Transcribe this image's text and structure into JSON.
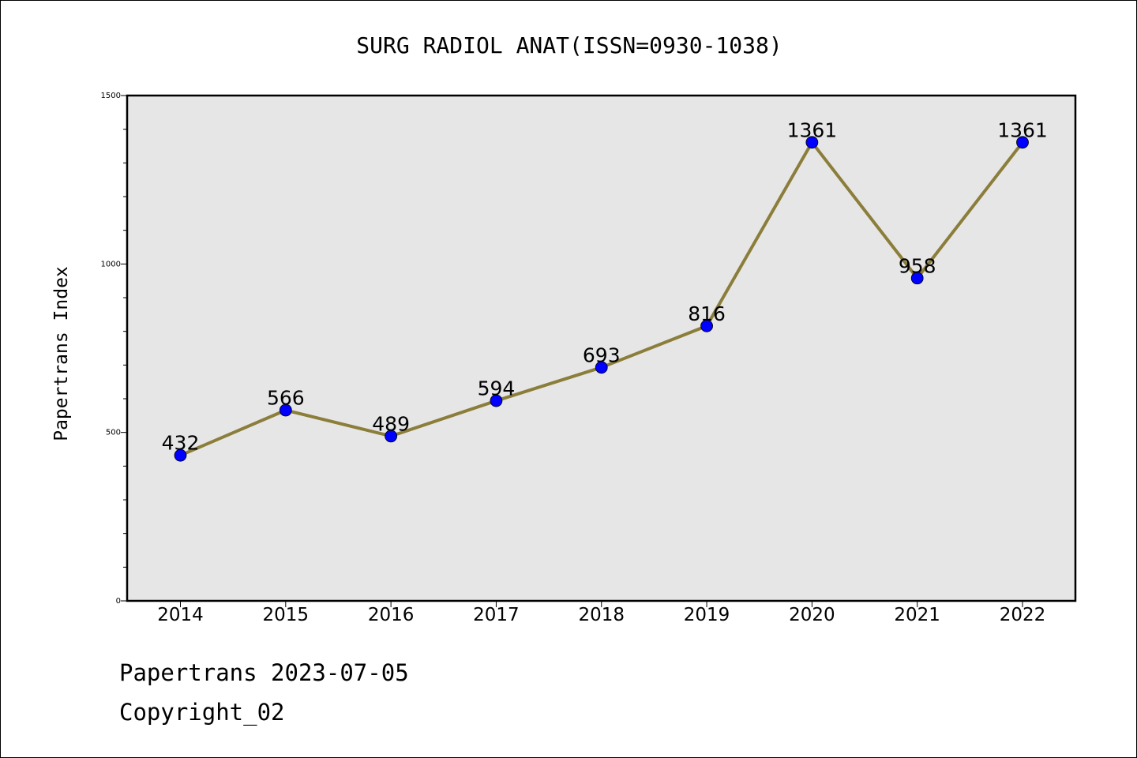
{
  "chart_data": {
    "type": "line",
    "title": "SURG RADIOL ANAT(ISSN=0930-1038)",
    "xlabel": "",
    "ylabel": "Papertrans Index",
    "categories": [
      "2014",
      "2015",
      "2016",
      "2017",
      "2018",
      "2019",
      "2020",
      "2021",
      "2022"
    ],
    "series": [
      {
        "values": [
          432,
          566,
          489,
          594,
          693,
          816,
          1361,
          958,
          1361
        ],
        "color": "#8b7d3a",
        "marker_color": "#0000ff"
      }
    ],
    "data_labels": [
      "432",
      "566",
      "489",
      "594",
      "693",
      "816",
      "1361",
      "958",
      "1361"
    ],
    "ylim": [
      0,
      1500
    ],
    "yticks": [
      "0",
      "500",
      "1000",
      "1500"
    ],
    "grid": false,
    "legend": "none",
    "plot_background": "#e6e6e6"
  },
  "footer": {
    "line1": "Papertrans 2023-07-05",
    "line2": "Copyright_02"
  }
}
